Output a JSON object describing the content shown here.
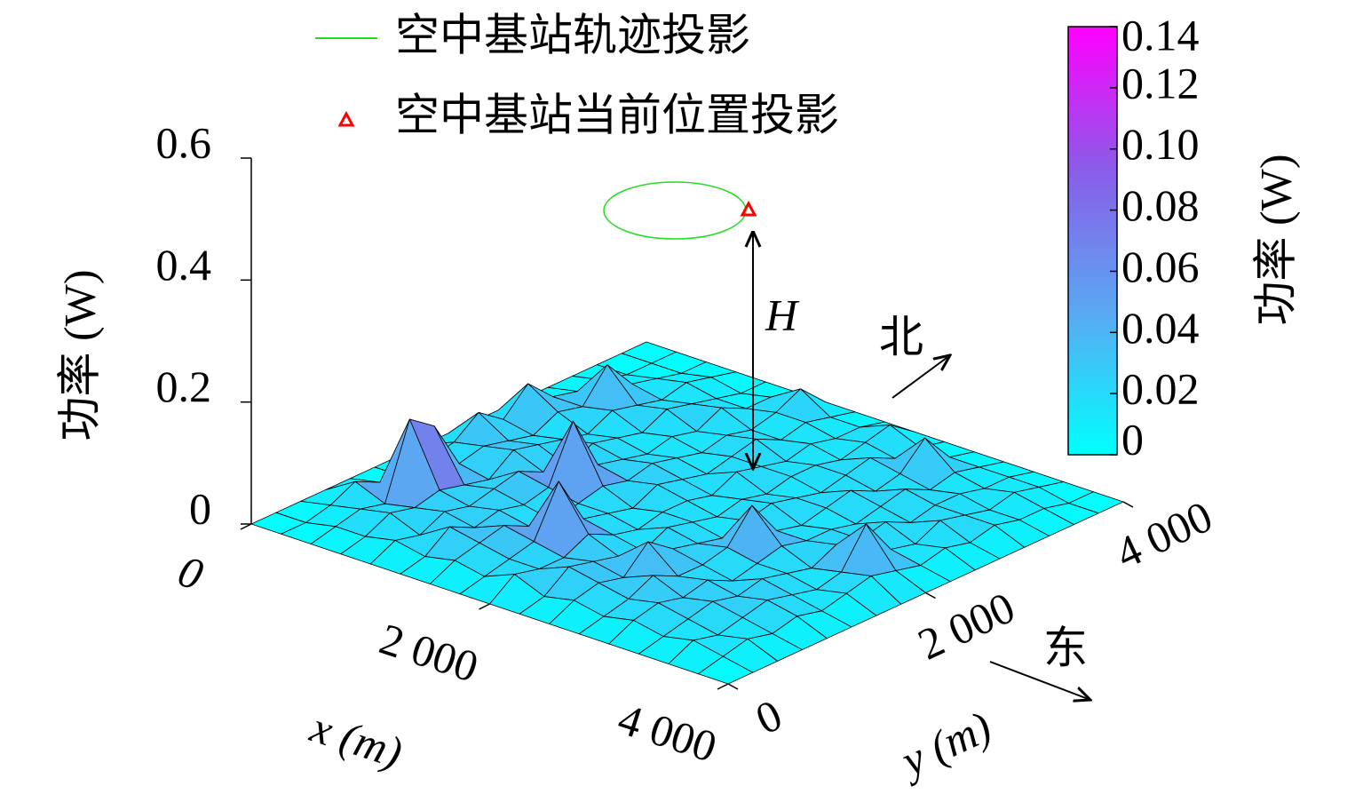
{
  "chart_data": {
    "type": "surface",
    "xlabel": "x (m)",
    "ylabel": "y (m)",
    "zlabel": "功率 (W)",
    "colorbar_label": "功率 (W)",
    "x": [
      0,
      250,
      500,
      750,
      1000,
      1250,
      1500,
      1750,
      2000,
      2250,
      2500,
      2750,
      3000,
      3250,
      3500,
      3750,
      4000
    ],
    "y": [
      0,
      250,
      500,
      750,
      1000,
      1250,
      1500,
      1750,
      2000,
      2250,
      2500,
      2750,
      3000,
      3250,
      3500,
      3750,
      4000
    ],
    "z": [
      [
        0,
        0,
        0,
        0,
        0,
        0,
        0,
        0,
        0,
        0,
        0,
        0,
        0,
        0,
        0,
        0,
        0
      ],
      [
        0,
        0,
        0.01,
        0.03,
        0.01,
        0,
        0.01,
        0.02,
        0.05,
        0.02,
        0.06,
        0.02,
        0.01,
        0.01,
        0,
        0,
        0
      ],
      [
        0,
        0.01,
        0.02,
        0.01,
        0.13,
        0.1,
        0.02,
        0.03,
        0.02,
        0.01,
        0.03,
        0.02,
        0.07,
        0.02,
        0.01,
        0,
        0
      ],
      [
        0,
        0.01,
        0.03,
        0.02,
        0.03,
        0.02,
        0.01,
        0.04,
        0.03,
        0.02,
        0.01,
        0.03,
        0.02,
        0.01,
        0.02,
        0.01,
        0
      ],
      [
        0,
        0.02,
        0.01,
        0.03,
        0.02,
        0.03,
        0.04,
        0.02,
        0.01,
        0.03,
        0.02,
        0.01,
        0.03,
        0.02,
        0.01,
        0,
        0
      ],
      [
        0,
        0.01,
        0.04,
        0.02,
        0.03,
        0.02,
        0.03,
        0.12,
        0.03,
        0.02,
        0.01,
        0.02,
        0.01,
        0.03,
        0.01,
        0.01,
        0
      ],
      [
        0,
        0.02,
        0.03,
        0.04,
        0.02,
        0.01,
        0.02,
        0.03,
        0.02,
        0.03,
        0.02,
        0.01,
        0.02,
        0.01,
        0.02,
        0.04,
        0
      ],
      [
        0,
        0.01,
        0.02,
        0.03,
        0.11,
        0.03,
        0.02,
        0.01,
        0.03,
        0.02,
        0.01,
        0.02,
        0.03,
        0.01,
        0.02,
        0.01,
        0
      ],
      [
        0,
        0.03,
        0.02,
        0.02,
        0.04,
        0.02,
        0.01,
        0.02,
        0.02,
        0.01,
        0.03,
        0.02,
        0.01,
        0.02,
        0.01,
        0.01,
        0
      ],
      [
        0,
        0.01,
        0.04,
        0.03,
        0.02,
        0.01,
        0.03,
        0.02,
        0.01,
        0.02,
        0.01,
        0.02,
        0.02,
        0.01,
        0.02,
        0.03,
        0
      ],
      [
        0,
        0.02,
        0.03,
        0.02,
        0.06,
        0.03,
        0.02,
        0.01,
        0.02,
        0.03,
        0.02,
        0.01,
        0.02,
        0.03,
        0.01,
        0.01,
        0
      ],
      [
        0,
        0.01,
        0.02,
        0.04,
        0.02,
        0.02,
        0.03,
        0.08,
        0.02,
        0.01,
        0.02,
        0.03,
        0.01,
        0.02,
        0.06,
        0.01,
        0
      ],
      [
        0,
        0.02,
        0.03,
        0.02,
        0.03,
        0.01,
        0.02,
        0.03,
        0.02,
        0.02,
        0.01,
        0.02,
        0.03,
        0.01,
        0.02,
        0.01,
        0
      ],
      [
        0,
        0.01,
        0.02,
        0.03,
        0.02,
        0.03,
        0.02,
        0.01,
        0.03,
        0.02,
        0.03,
        0.01,
        0.02,
        0.02,
        0.01,
        0.01,
        0
      ],
      [
        0,
        0.02,
        0.01,
        0.02,
        0.03,
        0.02,
        0.01,
        0.02,
        0.08,
        0.02,
        0.01,
        0.03,
        0.02,
        0.01,
        0.02,
        0.01,
        0
      ],
      [
        0,
        0.01,
        0.02,
        0.01,
        0.02,
        0.01,
        0.02,
        0.03,
        0.02,
        0.01,
        0.02,
        0.01,
        0.02,
        0.01,
        0.01,
        0,
        0
      ],
      [
        0,
        0,
        0,
        0,
        0,
        0,
        0,
        0,
        0,
        0,
        0,
        0,
        0,
        0,
        0,
        0,
        0
      ]
    ],
    "xlim": [
      0,
      4000
    ],
    "ylim": [
      0,
      4000
    ],
    "zlim": [
      0,
      0.6
    ],
    "clim": [
      0,
      0.14
    ],
    "xticks": [
      0,
      {
        "value": 2000,
        "label": "2 000"
      },
      {
        "value": 4000,
        "label": "4 000"
      }
    ],
    "yticks": [
      0,
      {
        "value": 2000,
        "label": "2 000"
      },
      {
        "value": 4000,
        "label": "4 000"
      }
    ],
    "zticks": [
      0,
      0.2,
      0.4,
      0.6
    ],
    "cticks": [
      0,
      0.02,
      0.04,
      0.06,
      0.08,
      {
        "value": 0.1,
        "label": "0.10"
      },
      0.12,
      0.14
    ],
    "colormap": [
      "#00ffff",
      "#5aa8f2",
      "#8a5ce8",
      "#ff00ff"
    ],
    "legend": [
      {
        "name": "空中基站轨迹投影",
        "color": "#22dd22"
      },
      {
        "name": "空中基站当前位置投影",
        "color": "#ff0000"
      }
    ],
    "annotations": {
      "height": "H",
      "north": "北",
      "east": "东"
    }
  }
}
